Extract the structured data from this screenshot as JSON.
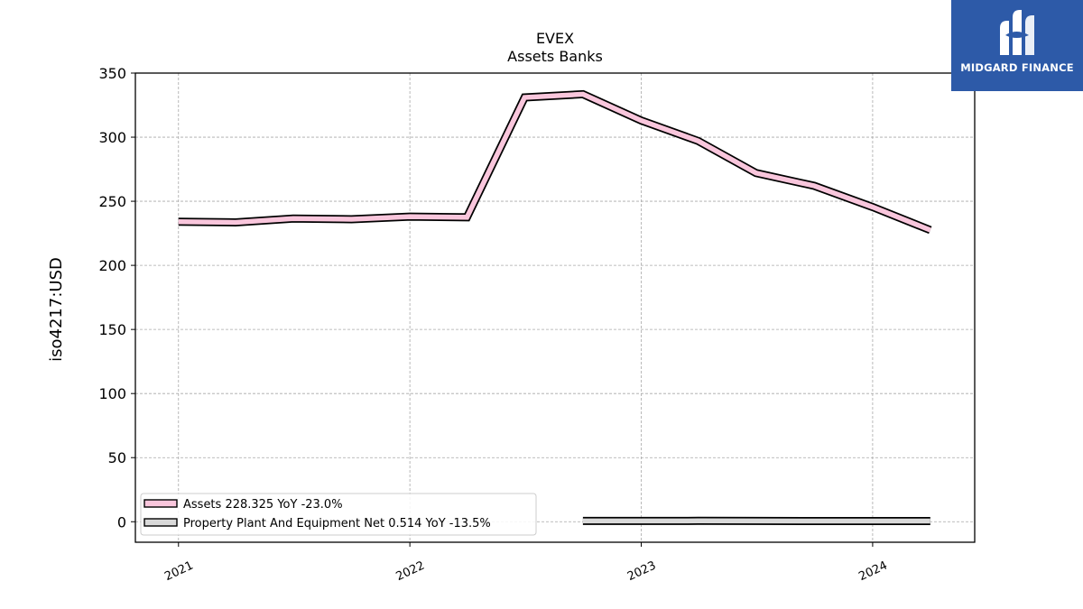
{
  "chart_data": {
    "type": "line",
    "title": "EVEX",
    "subtitle": "Assets Banks",
    "ylabel": "iso4217:USD",
    "xlabel": "",
    "ylim": [
      -16,
      350
    ],
    "yticks": [
      0,
      50,
      100,
      150,
      200,
      250,
      300,
      350
    ],
    "xlim": [
      "2020-10-25",
      "2024-06-10"
    ],
    "xticks": [
      {
        "label": "2021",
        "date": "2021-01-01"
      },
      {
        "label": "2022",
        "date": "2022-01-01"
      },
      {
        "label": "2023",
        "date": "2023-01-01"
      },
      {
        "label": "2024",
        "date": "2024-01-01"
      }
    ],
    "grid": true,
    "legend_position": "bottom-left",
    "series": [
      {
        "name": "Assets",
        "legend": "Assets  228.325 YoY -23.0%",
        "color": "#f9c6dc",
        "points": [
          {
            "x": "2021-01-01",
            "y": 234
          },
          {
            "x": "2021-04-01",
            "y": 233.5
          },
          {
            "x": "2021-07-01",
            "y": 236.5
          },
          {
            "x": "2021-10-01",
            "y": 236
          },
          {
            "x": "2022-01-01",
            "y": 238
          },
          {
            "x": "2022-04-01",
            "y": 237.5
          },
          {
            "x": "2022-07-01",
            "y": 331
          },
          {
            "x": "2022-10-01",
            "y": 333.5
          },
          {
            "x": "2023-01-01",
            "y": 313
          },
          {
            "x": "2023-04-01",
            "y": 297
          },
          {
            "x": "2023-07-01",
            "y": 272
          },
          {
            "x": "2023-10-01",
            "y": 262
          },
          {
            "x": "2024-01-01",
            "y": 245.5
          },
          {
            "x": "2024-04-01",
            "y": 227.5
          }
        ]
      },
      {
        "name": "Property Plant And Equipment Net",
        "legend": "Property Plant And Equipment Net  0.514 YoY -13.5%",
        "color": "#d9d9d9",
        "points": [
          {
            "x": "2022-10-01",
            "y": 0.6
          },
          {
            "x": "2023-01-01",
            "y": 0.6
          },
          {
            "x": "2023-04-01",
            "y": 0.65
          },
          {
            "x": "2023-07-01",
            "y": 0.6
          },
          {
            "x": "2023-10-01",
            "y": 0.55
          },
          {
            "x": "2024-01-01",
            "y": 0.55
          },
          {
            "x": "2024-04-01",
            "y": 0.514
          }
        ]
      }
    ]
  },
  "logo": {
    "text": "MIDGARD FINANCE",
    "background": "#2d5aa8"
  }
}
